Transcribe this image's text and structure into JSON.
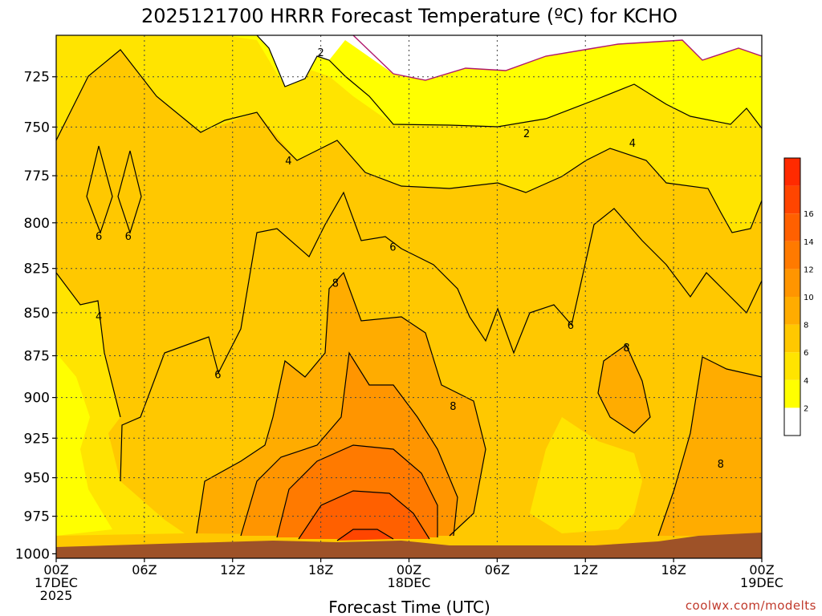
{
  "chart_data": {
    "type": "heatmap",
    "title": "2025121700 HRRR Forecast Temperature (ºC) for KCHO",
    "xlabel": "Forecast Time (UTC)",
    "ylabel": "",
    "y_ticks": [
      725,
      750,
      775,
      800,
      825,
      850,
      875,
      900,
      925,
      950,
      975,
      1000
    ],
    "y_range_hpa": [
      705,
      1003
    ],
    "y_scale": "log-pressure",
    "x_range_hours": [
      0,
      48
    ],
    "x_ticks": [
      {
        "hour": 0,
        "lines": [
          "00Z",
          "17DEC",
          "2025"
        ]
      },
      {
        "hour": 6,
        "lines": [
          "06Z"
        ]
      },
      {
        "hour": 12,
        "lines": [
          "12Z"
        ]
      },
      {
        "hour": 18,
        "lines": [
          "18Z"
        ]
      },
      {
        "hour": 24,
        "lines": [
          "00Z",
          "18DEC"
        ]
      },
      {
        "hour": 30,
        "lines": [
          "06Z"
        ]
      },
      {
        "hour": 36,
        "lines": [
          "12Z"
        ]
      },
      {
        "hour": 42,
        "lines": [
          "18Z"
        ]
      },
      {
        "hour": 48,
        "lines": [
          "00Z",
          "19DEC"
        ]
      }
    ],
    "grid": true,
    "colorbar": {
      "position": "right",
      "ticks": [
        "2",
        "4",
        "6",
        "8",
        "10",
        "12",
        "14",
        "16"
      ],
      "colors": [
        "#ffffff",
        "#ffff00",
        "#ffe400",
        "#ffc800",
        "#ffac00",
        "#ff9500",
        "#ff7a00",
        "#ff6000",
        "#ff4500",
        "#ff2a00"
      ]
    },
    "contour_levels": [
      2,
      4,
      6,
      8,
      10,
      12,
      14,
      16
    ],
    "contour_labels": [
      {
        "text": "2",
        "hour": 18.0,
        "p": 713
      },
      {
        "text": "2",
        "hour": 32.0,
        "p": 753
      },
      {
        "text": "4",
        "hour": 15.8,
        "p": 767
      },
      {
        "text": "4",
        "hour": 39.2,
        "p": 758
      },
      {
        "text": "4",
        "hour": 2.9,
        "p": 852
      },
      {
        "text": "6",
        "hour": 2.9,
        "p": 807
      },
      {
        "text": "6",
        "hour": 4.9,
        "p": 807
      },
      {
        "text": "6",
        "hour": 22.9,
        "p": 813
      },
      {
        "text": "6",
        "hour": 11.0,
        "p": 886
      },
      {
        "text": "6",
        "hour": 35.0,
        "p": 857
      },
      {
        "text": "8",
        "hour": 19.0,
        "p": 833
      },
      {
        "text": "8",
        "hour": 27.0,
        "p": 905
      },
      {
        "text": "8",
        "hour": 38.8,
        "p": 870
      },
      {
        "text": "8",
        "hour": 45.2,
        "p": 941
      }
    ],
    "ground_color": "#9e5228",
    "series": [
      {
        "hour": 0,
        "t_surface": 4.5,
        "t_top": 2.5
      },
      {
        "hour": 6,
        "t_surface": 6.5,
        "t_top": 3.0
      },
      {
        "hour": 12,
        "t_surface": 9.0,
        "t_top": 2.6
      },
      {
        "hour": 18,
        "t_surface": 13.5,
        "t_top": 2.0
      },
      {
        "hour": 21,
        "t_surface": 16.5,
        "t_top": 1.0
      },
      {
        "hour": 24,
        "t_surface": 13.0,
        "t_top": 0.5
      },
      {
        "hour": 30,
        "t_surface": 7.0,
        "t_top": 1.0
      },
      {
        "hour": 36,
        "t_surface": 6.0,
        "t_top": 1.5
      },
      {
        "hour": 42,
        "t_surface": 8.0,
        "t_top": 2.5
      },
      {
        "hour": 48,
        "t_surface": 7.5,
        "t_top": 3.0
      }
    ]
  },
  "credit": "coolwx.com/modelts"
}
